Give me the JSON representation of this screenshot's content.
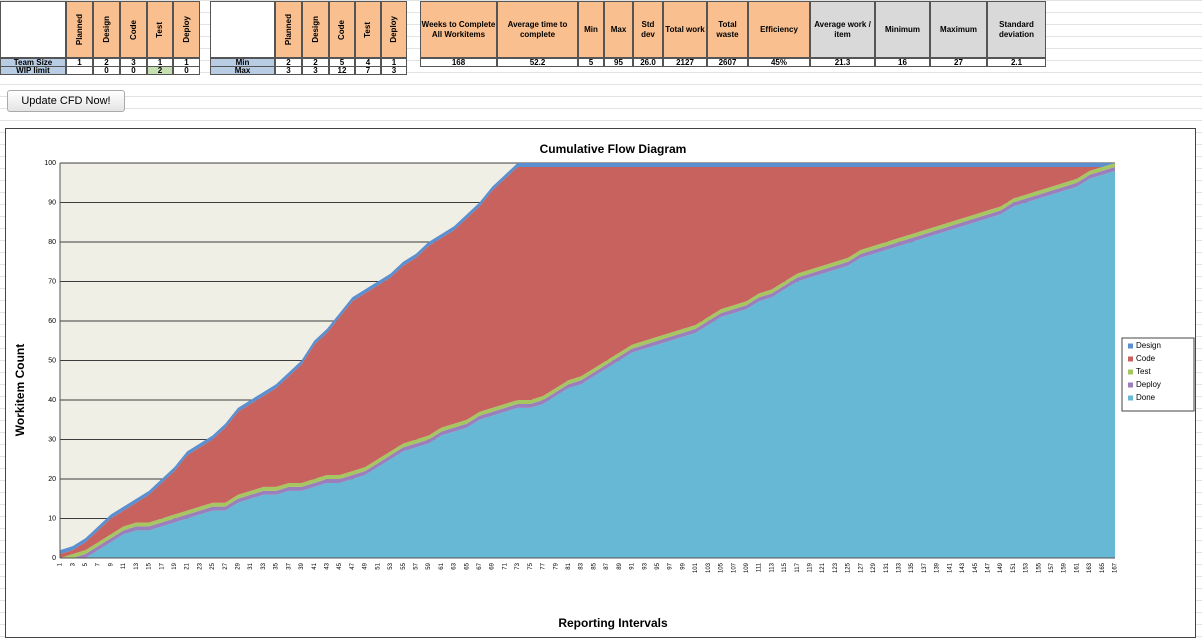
{
  "button": "Update CFD Now!",
  "tables": [
    {
      "headers": [
        "Planned",
        "Design",
        "Code",
        "Test",
        "Deploy"
      ],
      "rows": [
        {
          "label": "Team Size",
          "values": [
            1,
            2,
            3,
            1,
            1
          ]
        },
        {
          "label": "WIP limit",
          "values": [
            null,
            0,
            0,
            2,
            0
          ]
        }
      ]
    },
    {
      "headers": [
        "Planned",
        "Design",
        "Code",
        "Test",
        "Deploy"
      ],
      "rows": [
        {
          "label": "Min",
          "values": [
            2,
            2,
            5,
            4,
            1
          ]
        },
        {
          "label": "Max",
          "values": [
            3,
            3,
            12,
            7,
            3
          ]
        }
      ]
    },
    {
      "headers": [
        "Weeks to Complete All Workitems",
        "Average time to complete",
        "Min",
        "Max",
        "Std dev",
        "Total work",
        "Total waste",
        "Efficiency"
      ],
      "rows": [
        {
          "values": [
            168,
            52.2,
            5,
            95,
            "26.0",
            2127,
            2607,
            "45%"
          ]
        }
      ]
    },
    {
      "headers": [
        "Average work / item",
        "Minimum",
        "Maximum",
        "Standard deviation"
      ],
      "rows": [
        {
          "values": [
            21.3,
            16,
            27,
            2.1
          ]
        }
      ]
    }
  ],
  "chart_data": {
    "type": "stacked_area",
    "title": "Cumulative Flow Diagram",
    "x_label": "Reporting Intervals",
    "y_label": "Workitem Count",
    "ylim": [
      0,
      100
    ],
    "yticks": [
      0,
      10,
      20,
      30,
      40,
      50,
      60,
      70,
      80,
      90,
      100
    ],
    "grid": true,
    "legend": "right",
    "categories": [
      1,
      3,
      5,
      7,
      9,
      11,
      13,
      15,
      17,
      19,
      21,
      23,
      25,
      27,
      29,
      31,
      33,
      35,
      37,
      39,
      41,
      43,
      45,
      47,
      49,
      51,
      53,
      55,
      57,
      59,
      61,
      63,
      65,
      67,
      69,
      71,
      73,
      75,
      77,
      79,
      81,
      83,
      85,
      87,
      89,
      91,
      93,
      95,
      97,
      99,
      101,
      103,
      105,
      107,
      109,
      111,
      113,
      115,
      117,
      119,
      121,
      123,
      125,
      127,
      129,
      131,
      133,
      135,
      137,
      139,
      141,
      143,
      145,
      147,
      149,
      151,
      153,
      155,
      157,
      159,
      161,
      163,
      165,
      167
    ],
    "series": [
      {
        "name": "Design",
        "color": "#5b8fd0",
        "values": [
          1,
          1,
          1,
          1,
          1,
          1,
          1,
          1,
          1,
          1,
          1,
          1,
          1,
          1,
          1,
          1,
          1,
          1,
          1,
          1,
          1,
          1,
          1,
          1,
          1,
          1,
          1,
          1,
          1,
          1,
          1,
          1,
          1,
          1,
          1,
          1,
          1,
          1,
          1,
          1,
          1,
          1,
          1,
          1,
          1,
          1,
          1,
          1,
          1,
          1,
          1,
          1,
          1,
          1,
          1,
          1,
          1,
          1,
          1,
          1,
          1,
          1,
          1,
          1,
          1,
          1,
          1,
          1,
          1,
          1,
          1,
          1,
          1,
          1,
          1,
          1,
          1,
          1,
          1,
          1,
          1,
          1,
          1,
          0
        ]
      },
      {
        "name": "Code",
        "color": "#c8625f",
        "values": [
          1,
          1,
          2,
          3,
          4,
          4,
          5,
          7,
          9,
          11,
          14,
          15,
          16,
          19,
          21,
          22,
          23,
          25,
          27,
          30,
          34,
          36,
          40,
          43,
          44,
          44,
          44,
          45,
          46,
          48,
          48,
          49,
          51,
          52,
          55,
          57,
          59,
          59,
          58,
          56,
          54,
          53,
          51,
          49,
          47,
          45,
          44,
          43,
          42,
          41,
          40,
          38,
          36,
          35,
          34,
          32,
          31,
          29,
          27,
          26,
          25,
          24,
          23,
          21,
          20,
          19,
          18,
          17,
          16,
          15,
          14,
          13,
          12,
          11,
          10,
          8,
          7,
          6,
          5,
          4,
          3,
          1,
          0,
          0
        ]
      },
      {
        "name": "Test",
        "color": "#a6c661",
        "values": [
          0,
          1,
          1,
          1,
          1,
          1,
          1,
          1,
          1,
          1,
          1,
          1,
          1,
          1,
          1,
          1,
          1,
          1,
          1,
          1,
          1,
          1,
          1,
          1,
          1,
          1,
          1,
          1,
          1,
          1,
          1,
          1,
          1,
          1,
          1,
          1,
          1,
          1,
          1,
          1,
          1,
          1,
          1,
          1,
          1,
          1,
          1,
          1,
          1,
          1,
          1,
          1,
          1,
          1,
          1,
          1,
          1,
          1,
          1,
          1,
          1,
          1,
          1,
          1,
          1,
          1,
          1,
          1,
          1,
          1,
          1,
          1,
          1,
          1,
          1,
          1,
          1,
          1,
          1,
          1,
          1,
          1,
          1,
          1
        ]
      },
      {
        "name": "Deploy",
        "color": "#9b7fbd",
        "values": [
          0,
          0,
          1,
          1,
          1,
          1,
          1,
          1,
          1,
          1,
          1,
          1,
          1,
          1,
          1,
          1,
          1,
          1,
          1,
          1,
          1,
          1,
          1,
          1,
          1,
          1,
          1,
          1,
          1,
          1,
          1,
          1,
          1,
          1,
          1,
          1,
          1,
          1,
          1,
          1,
          1,
          1,
          1,
          1,
          1,
          1,
          1,
          1,
          1,
          1,
          1,
          1,
          1,
          1,
          1,
          1,
          1,
          1,
          1,
          1,
          1,
          1,
          1,
          1,
          1,
          1,
          1,
          1,
          1,
          1,
          1,
          1,
          1,
          1,
          1,
          1,
          1,
          1,
          1,
          1,
          1,
          1,
          1,
          1
        ]
      },
      {
        "name": "Done",
        "color": "#66b8d4",
        "values": [
          0,
          0,
          0,
          2,
          4,
          6,
          7,
          7,
          8,
          9,
          10,
          11,
          12,
          12,
          14,
          15,
          16,
          16,
          17,
          17,
          18,
          19,
          19,
          20,
          21,
          23,
          25,
          27,
          28,
          29,
          31,
          32,
          33,
          35,
          36,
          37,
          38,
          38,
          39,
          41,
          43,
          44,
          46,
          48,
          50,
          52,
          53,
          54,
          55,
          56,
          57,
          59,
          61,
          62,
          63,
          65,
          66,
          68,
          70,
          71,
          72,
          73,
          74,
          76,
          77,
          78,
          79,
          80,
          81,
          82,
          83,
          84,
          85,
          86,
          87,
          89,
          90,
          91,
          92,
          93,
          94,
          96,
          97,
          98
        ]
      }
    ]
  }
}
